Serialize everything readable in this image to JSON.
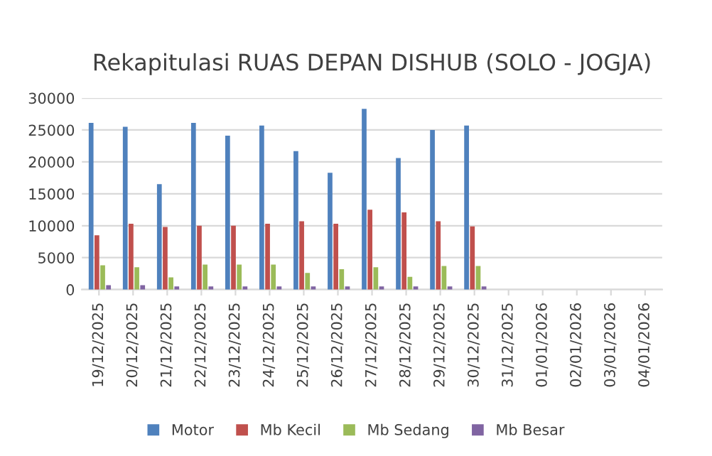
{
  "chart_data": {
    "type": "bar",
    "title": "Rekapitulasi RUAS DEPAN DISHUB (SOLO - JOGJA)",
    "categories": [
      "19/12/2025",
      "20/12/2025",
      "21/12/2025",
      "22/12/2025",
      "23/12/2025",
      "24/12/2025",
      "25/12/2025",
      "26/12/2025",
      "27/12/2025",
      "28/12/2025",
      "29/12/2025",
      "30/12/2025",
      "31/12/2025",
      "01/01/2026",
      "02/01/2026",
      "03/01/2026",
      "04/01/2026"
    ],
    "series": [
      {
        "name": "Motor",
        "color": "#4f81bd",
        "values": [
          26100,
          25500,
          16500,
          26100,
          24100,
          25700,
          21700,
          18300,
          28300,
          20600,
          25000,
          25700,
          null,
          null,
          null,
          null,
          null
        ]
      },
      {
        "name": "Mb Kecil",
        "color": "#c0504d",
        "values": [
          8500,
          10300,
          9800,
          10000,
          10000,
          10300,
          10700,
          10300,
          12500,
          12100,
          10700,
          9900,
          null,
          null,
          null,
          null,
          null
        ]
      },
      {
        "name": "Mb Sedang",
        "color": "#9bbb59",
        "values": [
          3800,
          3500,
          1900,
          3900,
          3900,
          3900,
          2600,
          3200,
          3500,
          2000,
          3700,
          3700,
          null,
          null,
          null,
          null,
          null
        ]
      },
      {
        "name": "Mb Besar",
        "color": "#8064a2",
        "values": [
          700,
          700,
          500,
          500,
          500,
          500,
          500,
          500,
          500,
          500,
          500,
          500,
          null,
          null,
          null,
          null,
          null
        ]
      }
    ],
    "ylim": [
      0,
      30000
    ],
    "yticks": [
      0,
      5000,
      10000,
      15000,
      20000,
      25000,
      30000
    ],
    "grid": "y",
    "legend": "bottom"
  }
}
